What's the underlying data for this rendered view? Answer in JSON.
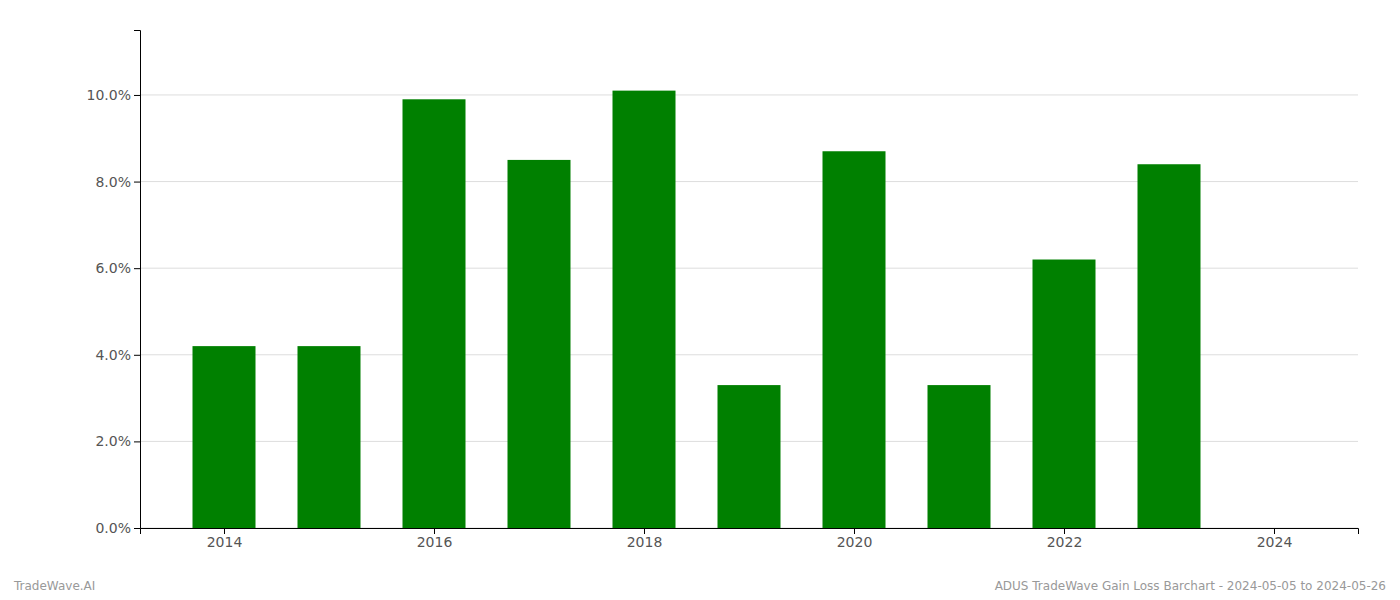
{
  "chart_data": {
    "type": "bar",
    "x": [
      2014,
      2015,
      2016,
      2017,
      2018,
      2019,
      2020,
      2021,
      2022,
      2023
    ],
    "values": [
      0.042,
      0.042,
      0.099,
      0.085,
      0.101,
      0.033,
      0.087,
      0.033,
      0.062,
      0.084
    ],
    "color": "#008000",
    "xlim": [
      2013.2,
      2024.8
    ],
    "xticks": [
      2014,
      2016,
      2018,
      2020,
      2022,
      2024
    ],
    "ylim": [
      0,
      0.115
    ],
    "yticks": [
      {
        "value": 0.0,
        "label": "0.0%"
      },
      {
        "value": 0.02,
        "label": "2.0%"
      },
      {
        "value": 0.04,
        "label": "4.0%"
      },
      {
        "value": 0.06,
        "label": "6.0%"
      },
      {
        "value": 0.08,
        "label": "8.0%"
      },
      {
        "value": 0.1,
        "label": "10.0%"
      }
    ],
    "grid": true,
    "annotations": [
      "TradeWave.AI",
      "ADUS TradeWave Gain Loss Barchart - 2024-05-05 to 2024-05-26"
    ]
  }
}
